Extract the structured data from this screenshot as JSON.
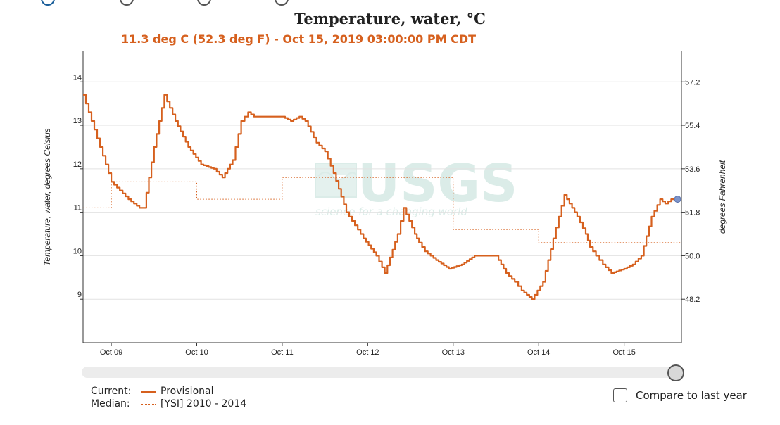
{
  "chart_data": {
    "type": "line",
    "title": "Temperature, water, °C",
    "subtitle": "11.3 deg C (52.3 deg F) - Oct 15, 2019 03:00:00 PM CDT",
    "ylabel": "Temperature, water, degrees Celsius",
    "ylabel_right": "degrees Fahrenheit",
    "ylim": [
      8.0,
      14.7
    ],
    "xlim": [
      8.67,
      15.67
    ],
    "x_unit": "day of October 2019",
    "y_ticks": [
      {
        "value": 9,
        "label": "9"
      },
      {
        "value": 10,
        "label": "10"
      },
      {
        "value": 11,
        "label": "11"
      },
      {
        "value": 12,
        "label": "12"
      },
      {
        "value": 13,
        "label": "13"
      },
      {
        "value": 14,
        "label": "14"
      }
    ],
    "y_ticks_right": [
      {
        "value": 9,
        "label": "48.2"
      },
      {
        "value": 10,
        "label": "50.0"
      },
      {
        "value": 11,
        "label": "51.8"
      },
      {
        "value": 12,
        "label": "53.6"
      },
      {
        "value": 13,
        "label": "55.4"
      },
      {
        "value": 14,
        "label": "57.2"
      }
    ],
    "x_ticks": [
      {
        "value": 9,
        "label": "Oct 09"
      },
      {
        "value": 10,
        "label": "Oct 10"
      },
      {
        "value": 11,
        "label": "Oct 11"
      },
      {
        "value": 12,
        "label": "Oct 12"
      },
      {
        "value": 13,
        "label": "Oct 13"
      },
      {
        "value": 14,
        "label": "Oct 14"
      },
      {
        "value": 15,
        "label": "Oct 15"
      }
    ],
    "grid": true,
    "series": [
      {
        "name": "Provisional",
        "style": "solid",
        "color": "#d6601e",
        "x": [
          8.67,
          9.0,
          9.2,
          9.33,
          9.38,
          9.5,
          9.62,
          9.75,
          9.9,
          10.05,
          10.2,
          10.3,
          10.42,
          10.52,
          10.6,
          10.67,
          10.72,
          11.0,
          11.1,
          11.2,
          11.27,
          11.4,
          11.5,
          11.6,
          11.75,
          11.95,
          12.1,
          12.2,
          12.35,
          12.42,
          12.55,
          12.6,
          12.67,
          12.8,
          12.95,
          13.1,
          13.25,
          13.4,
          13.5,
          13.62,
          13.72,
          13.8,
          13.92,
          14.05,
          14.17,
          14.3,
          14.45,
          14.55,
          14.6,
          14.67,
          14.75,
          14.85,
          15.0,
          15.1,
          15.2,
          15.32,
          15.42,
          15.48,
          15.55,
          15.6
        ],
        "values": [
          13.7,
          11.7,
          11.3,
          11.1,
          11.1,
          12.5,
          13.7,
          13.1,
          12.5,
          12.1,
          12.0,
          11.8,
          12.2,
          13.1,
          13.3,
          13.2,
          13.2,
          13.2,
          13.1,
          13.2,
          13.1,
          12.6,
          12.4,
          11.9,
          11.0,
          10.4,
          10.0,
          9.6,
          10.5,
          11.1,
          10.5,
          10.3,
          10.1,
          9.9,
          9.7,
          9.8,
          10.0,
          10.0,
          10.0,
          9.6,
          9.4,
          9.2,
          9.0,
          9.4,
          10.4,
          11.4,
          10.9,
          10.5,
          10.2,
          10.0,
          9.8,
          9.6,
          9.7,
          9.8,
          10.0,
          10.9,
          11.3,
          11.2,
          11.3,
          11.3
        ]
      },
      {
        "name": "[YSI] 2010 - 2014",
        "style": "dotted",
        "color": "#d6601e",
        "x": [
          8.67,
          9.0,
          9.0,
          10.0,
          10.0,
          11.0,
          11.0,
          13.0,
          13.0,
          14.0,
          14.0,
          15.67
        ],
        "values": [
          11.1,
          11.1,
          11.7,
          11.7,
          11.3,
          11.3,
          11.8,
          11.8,
          10.6,
          10.6,
          10.3,
          10.3
        ]
      }
    ],
    "current_point": {
      "x": 15.6,
      "y": 11.3
    },
    "watermark": "USGS",
    "watermark_tagline": "science for a changing world"
  },
  "legend": {
    "current_label": "Current:",
    "current_item": "Provisional",
    "median_label": "Median:",
    "median_item": "[YSI] 2010 - 2014"
  },
  "compare": {
    "label": "Compare to last year",
    "checked": false
  }
}
